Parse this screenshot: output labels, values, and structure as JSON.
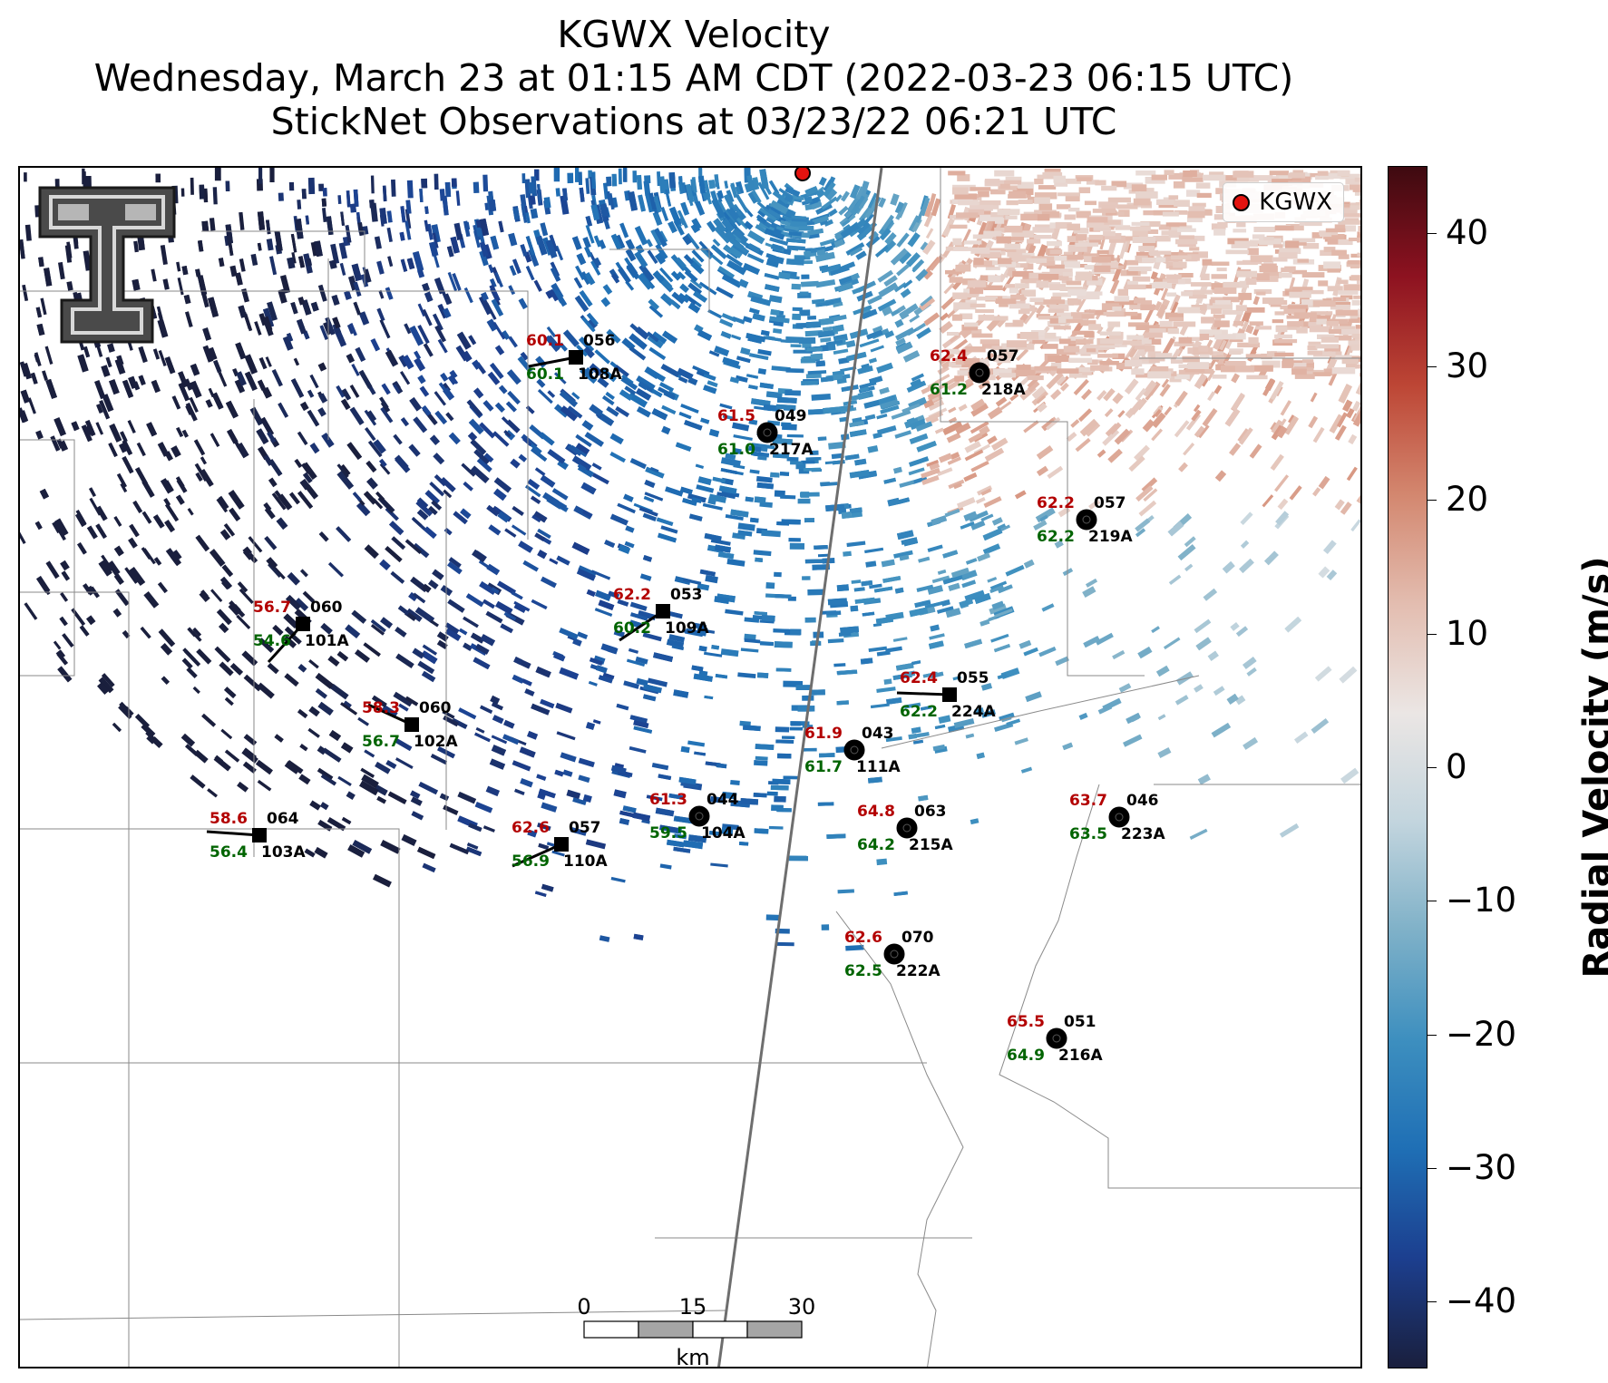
{
  "title": {
    "line1": "KGWX Velocity",
    "line2": "Wednesday, March 23 at 01:15 AM CDT (2022-03-23 06:15 UTC)",
    "line3": "StickNet Observations at 03/23/22 06:21 UTC"
  },
  "legend": {
    "label": "KGWX",
    "marker_color": "#e3130f"
  },
  "logo": {
    "name": "texas-tech-double-t-logo"
  },
  "colorbar": {
    "title": "Radial Velocity (m/s)",
    "range": [
      -45,
      45
    ],
    "ticks": [
      "40",
      "30",
      "20",
      "10",
      "0",
      "−10",
      "−20",
      "−30",
      "−40"
    ],
    "tick_values": [
      40,
      30,
      20,
      10,
      0,
      -10,
      -20,
      -30,
      -40
    ],
    "colors": [
      "#1a1f3d",
      "#1c3f8f",
      "#1f6fb5",
      "#3d8fbf",
      "#7fb1c8",
      "#c3d5de",
      "#ebe6e4",
      "#e3bdb0",
      "#d3876f",
      "#bd4635",
      "#8d1220",
      "#3e0a10"
    ]
  },
  "scale_bar": {
    "labels": [
      "0",
      "15",
      "30"
    ],
    "unit": "km"
  },
  "station_colors": {
    "top": "#b30000",
    "bottom": "#006400",
    "label": "#000000"
  },
  "stations": [
    {
      "id": "108A",
      "top": "60.1",
      "bottom": "60.1",
      "dir": "056",
      "marker": "square"
    },
    {
      "id": "218A",
      "top": "62.4",
      "bottom": "61.2",
      "dir": "057",
      "marker": "circle"
    },
    {
      "id": "217A",
      "top": "61.5",
      "bottom": "61.0",
      "dir": "049",
      "marker": "circle"
    },
    {
      "id": "219A",
      "top": "62.2",
      "bottom": "62.2",
      "dir": "057",
      "marker": "circle"
    },
    {
      "id": "101A",
      "top": "56.7",
      "bottom": "54.6",
      "dir": "060",
      "marker": "square"
    },
    {
      "id": "109A",
      "top": "62.2",
      "bottom": "60.2",
      "dir": "053",
      "marker": "square"
    },
    {
      "id": "224A",
      "top": "62.4",
      "bottom": "62.2",
      "dir": "055",
      "marker": "square"
    },
    {
      "id": "102A",
      "top": "58.3",
      "bottom": "56.7",
      "dir": "060",
      "marker": "square"
    },
    {
      "id": "111A",
      "top": "61.9",
      "bottom": "61.7",
      "dir": "043",
      "marker": "circle"
    },
    {
      "id": "104A",
      "top": "61.3",
      "bottom": "59.5",
      "dir": "044",
      "marker": "circle"
    },
    {
      "id": "215A",
      "top": "64.8",
      "bottom": "64.2",
      "dir": "063",
      "marker": "circle"
    },
    {
      "id": "223A",
      "top": "63.7",
      "bottom": "63.5",
      "dir": "046",
      "marker": "circle"
    },
    {
      "id": "103A",
      "top": "58.6",
      "bottom": "56.4",
      "dir": "064",
      "marker": "square"
    },
    {
      "id": "110A",
      "top": "62.6",
      "bottom": "56.9",
      "dir": "057",
      "marker": "square"
    },
    {
      "id": "222A",
      "top": "62.6",
      "bottom": "62.5",
      "dir": "070",
      "marker": "circle"
    },
    {
      "id": "216A",
      "top": "65.5",
      "bottom": "64.9",
      "dir": "051",
      "marker": "circle"
    }
  ]
}
